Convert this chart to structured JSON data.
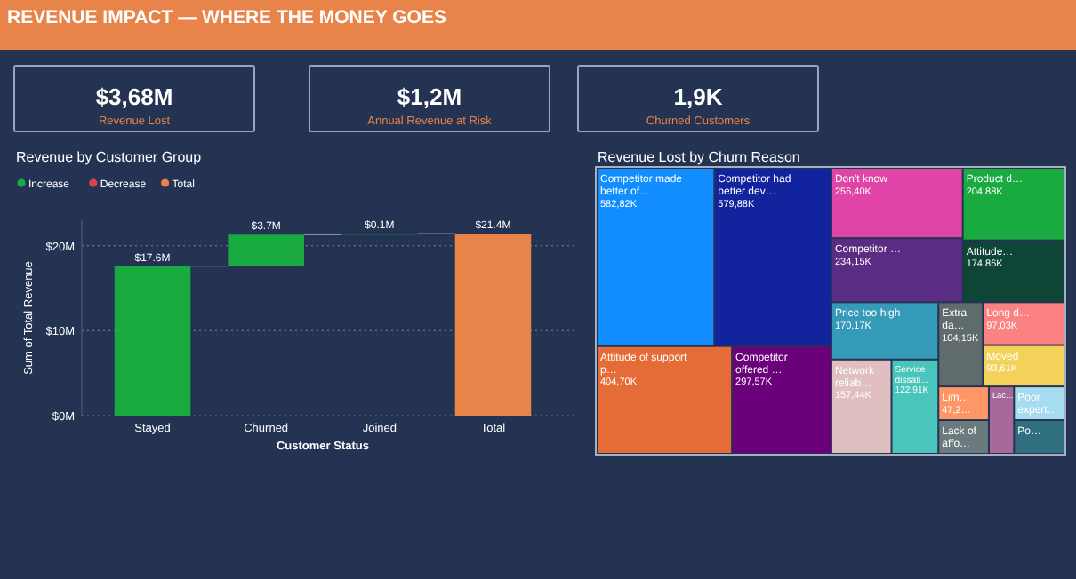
{
  "chart_data": [
    {
      "type": "other",
      "title": "REVENUE IMPACT — WHERE THE MONEY GOES",
      "categories": [
        "Revenue Lost",
        "Annual Revenue at Risk",
        "Churned Customers"
      ],
      "value_labels": [
        "$3,68M",
        "$1,2M",
        "1,9K"
      ]
    },
    {
      "type": "bar",
      "title": "Revenue by Customer Group",
      "xlabel": "Customer Status",
      "ylabel": "Sum of Total Revenue",
      "categories": [
        "Stayed",
        "Churned",
        "Joined",
        "Total"
      ],
      "ylim": [
        0,
        23
      ],
      "yticks": [
        {
          "value": 0,
          "label": "$0M"
        },
        {
          "value": 10,
          "label": "$10M"
        },
        {
          "value": 20,
          "label": "$20M"
        }
      ],
      "grid": "y",
      "legend": "top left",
      "series": [
        {
          "name": "Increase",
          "color": "#1aab40",
          "values": [
            17.6,
            3.7,
            0.1,
            null
          ],
          "base": [
            0,
            17.6,
            21.3,
            null
          ],
          "value_labels": [
            "$17.6M",
            "$3.7M",
            "$0.1M",
            null
          ]
        },
        {
          "name": "Decrease",
          "color": "#d64550",
          "values": [
            null,
            null,
            null,
            null
          ]
        },
        {
          "name": "Total",
          "color": "#e8834a",
          "values": [
            null,
            null,
            null,
            21.4
          ],
          "base": [
            null,
            null,
            null,
            0
          ],
          "value_labels": [
            null,
            null,
            null,
            "$21.4M"
          ]
        }
      ]
    },
    {
      "type": "other",
      "title": "Revenue Lost by Churn Reason",
      "categories": [
        "Competitor made better of…",
        "Competitor had better dev…",
        "Attitude of support p…",
        "Competitor offered …",
        "Don't know",
        "Competitor …",
        "Product d…",
        "Attitude…",
        "Price too high",
        "Network reliab…",
        "Service dissati…",
        "Extra da…",
        "Long d…",
        "Moved",
        "Lim…",
        "Lack of affo…",
        "Lac…",
        "Poor expert…",
        "Po…"
      ],
      "values": [
        582.82,
        579.88,
        404.7,
        297.57,
        256.4,
        234.15,
        204.88,
        174.86,
        170.17,
        157.44,
        122.91,
        104.15,
        97.03,
        93.61,
        47.2,
        null,
        null,
        null,
        null
      ],
      "value_labels": [
        "582,82K",
        "579,88K",
        "404,70K",
        "297,57K",
        "256,40K",
        "234,15K",
        "204,88K",
        "174,86K",
        "170,17K",
        "157,44K",
        "122,91K",
        "104,15K",
        "97,03K",
        "93,61K",
        "47,2…",
        null,
        null,
        null,
        null
      ],
      "colors": [
        "#118dff",
        "#12239e",
        "#e66c37",
        "#6b007b",
        "#e044a7",
        "#5b2c83",
        "#1aab40",
        "#0e4537",
        "#3599b8",
        "#dfbfbf",
        "#4ac5bb",
        "#5f6b6d",
        "#fb8281",
        "#f4d25a",
        "#fe9666",
        "#6b7a7c",
        "#a66999",
        "#a7dbf0",
        "#2f6f7f"
      ]
    }
  ]
}
